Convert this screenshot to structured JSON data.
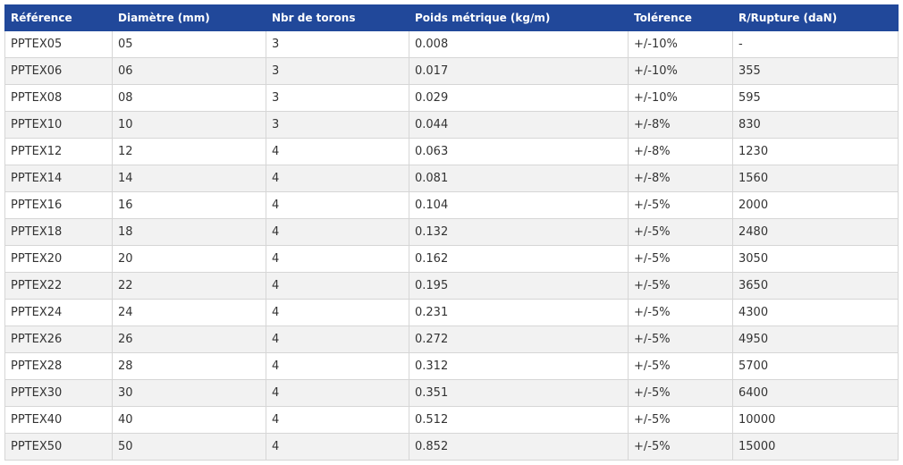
{
  "table": {
    "headers": [
      "Référence",
      "Diamètre (mm)",
      "Nbr de torons",
      "Poids métrique (kg/m)",
      "Tolérence",
      "R/Rupture (daN)"
    ],
    "rows": [
      [
        "PPTEX05",
        "05",
        "3",
        "0.008",
        "+/-10%",
        "-"
      ],
      [
        "PPTEX06",
        "06",
        "3",
        "0.017",
        "+/-10%",
        "355"
      ],
      [
        "PPTEX08",
        "08",
        "3",
        "0.029",
        "+/-10%",
        "595"
      ],
      [
        "PPTEX10",
        "10",
        "3",
        "0.044",
        "+/-8%",
        "830"
      ],
      [
        "PPTEX12",
        "12",
        "4",
        "0.063",
        "+/-8%",
        "1230"
      ],
      [
        "PPTEX14",
        "14",
        "4",
        "0.081",
        "+/-8%",
        "1560"
      ],
      [
        "PPTEX16",
        "16",
        "4",
        "0.104",
        "+/-5%",
        "2000"
      ],
      [
        "PPTEX18",
        "18",
        "4",
        "0.132",
        "+/-5%",
        "2480"
      ],
      [
        "PPTEX20",
        "20",
        "4",
        "0.162",
        "+/-5%",
        "3050"
      ],
      [
        "PPTEX22",
        "22",
        "4",
        "0.195",
        "+/-5%",
        "3650"
      ],
      [
        "PPTEX24",
        "24",
        "4",
        "0.231",
        "+/-5%",
        "4300"
      ],
      [
        "PPTEX26",
        "26",
        "4",
        "0.272",
        "+/-5%",
        "4950"
      ],
      [
        "PPTEX28",
        "28",
        "4",
        "0.312",
        "+/-5%",
        "5700"
      ],
      [
        "PPTEX30",
        "30",
        "4",
        "0.351",
        "+/-5%",
        "6400"
      ],
      [
        "PPTEX40",
        "40",
        "4",
        "0.512",
        "+/-5%",
        "10000"
      ],
      [
        "PPTEX50",
        "50",
        "4",
        "0.852",
        "+/-5%",
        "15000"
      ]
    ]
  }
}
